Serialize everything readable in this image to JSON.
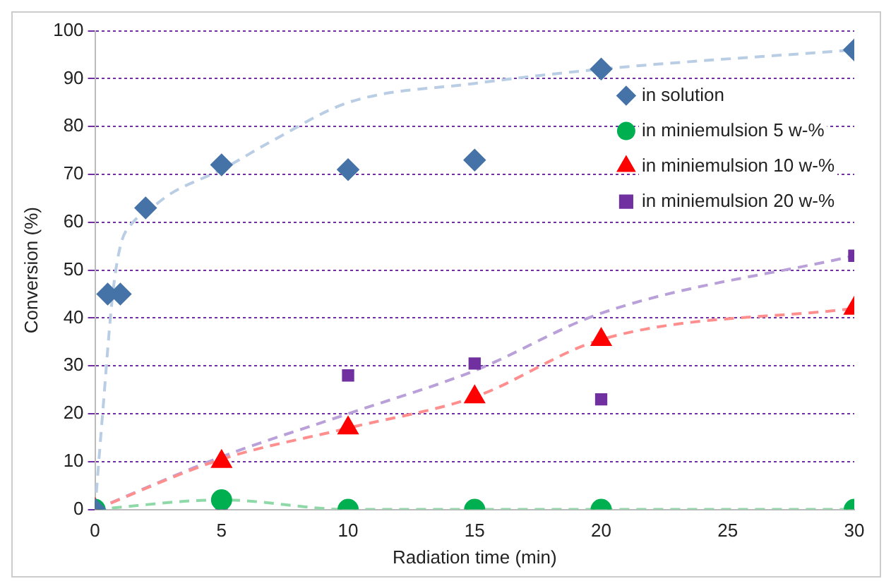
{
  "chart_data": {
    "type": "scatter",
    "xlabel": "Radiation time (min)",
    "ylabel": "Conversion (%)",
    "xlim": [
      0,
      30
    ],
    "xticks": [
      0,
      5,
      10,
      15,
      20,
      25,
      30
    ],
    "ylim": [
      0,
      100
    ],
    "yticks": [
      0,
      10,
      20,
      30,
      40,
      50,
      60,
      70,
      80,
      90,
      100
    ],
    "grid": "y",
    "legend": "right",
    "series": [
      {
        "name": "in solution",
        "marker": "diamond",
        "color": "#4572a7",
        "x": [
          0,
          0.5,
          1,
          2,
          5,
          10,
          15,
          20,
          30
        ],
        "values": [
          0,
          45,
          45,
          63,
          72,
          71,
          73,
          92,
          96
        ]
      },
      {
        "name": "in miniemulsion 5 w-%",
        "marker": "circle",
        "color": "#00b050",
        "x": [
          0,
          5,
          10,
          15,
          20,
          30
        ],
        "values": [
          0,
          2,
          0,
          0,
          0,
          0
        ]
      },
      {
        "name": "in miniemulsion 10 w-%",
        "marker": "triangle",
        "color": "#ff0000",
        "x": [
          0,
          5,
          10,
          15,
          20,
          30
        ],
        "values": [
          0,
          10,
          17,
          23.5,
          35.5,
          42
        ]
      },
      {
        "name": "in miniemulsion 20 w-%",
        "marker": "square",
        "color": "#7030a0",
        "x": [
          0,
          5,
          10,
          15,
          20,
          30
        ],
        "values": [
          0,
          0,
          28,
          30.5,
          23,
          53
        ]
      },
      {
        "type": "line",
        "marker": "none",
        "line_style": "dashed",
        "color": "#b9cde5",
        "x": [
          0,
          0.3,
          0.7,
          1,
          1.5,
          2,
          3,
          5,
          7,
          10,
          15,
          20,
          30
        ],
        "values": [
          0,
          20,
          45,
          55,
          60,
          62,
          66,
          71,
          77,
          85,
          89,
          92,
          96
        ]
      },
      {
        "type": "line",
        "marker": "none",
        "line_style": "dashed",
        "color": "#8fd9a8",
        "x": [
          0,
          5,
          10,
          15,
          20,
          30
        ],
        "values": [
          0,
          2,
          0,
          0,
          0,
          0
        ]
      },
      {
        "type": "line",
        "marker": "none",
        "line_style": "dashed",
        "color": "#ff8f8f",
        "x": [
          0,
          5,
          10,
          15,
          20,
          30
        ],
        "values": [
          0,
          10.5,
          17,
          23.5,
          35.5,
          42
        ]
      },
      {
        "type": "line",
        "marker": "none",
        "line_style": "dashed",
        "color": "#b9a0d8",
        "x": [
          0,
          5,
          10,
          15,
          20,
          30
        ],
        "values": [
          0,
          11,
          20,
          29,
          41,
          53
        ]
      }
    ]
  }
}
